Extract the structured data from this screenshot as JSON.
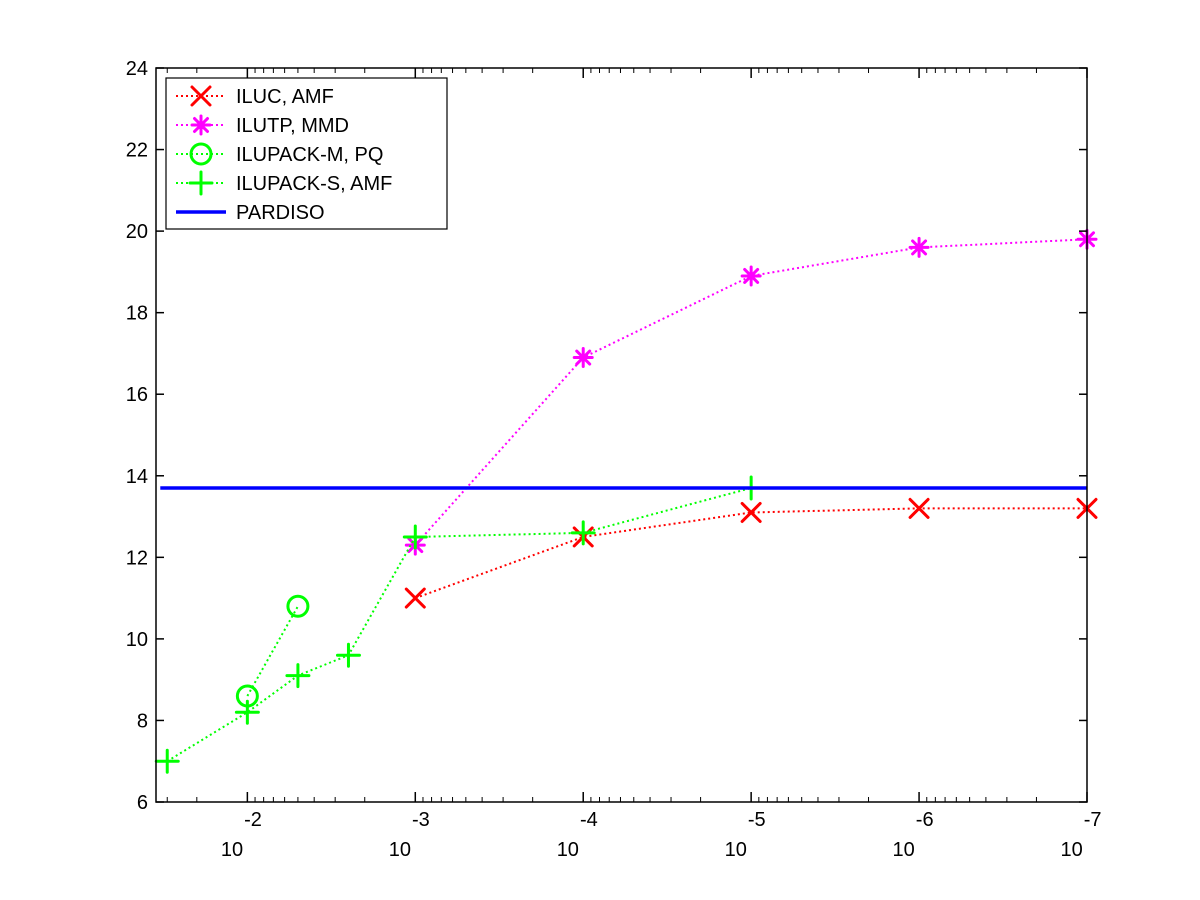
{
  "chart_data": {
    "type": "line",
    "title": "",
    "xlabel": "",
    "ylabel": "",
    "xscale": "log",
    "x_reversed": true,
    "xlim": [
      0.035,
      1e-07
    ],
    "ylim": [
      6,
      24
    ],
    "yticks": [
      6,
      8,
      10,
      12,
      14,
      16,
      18,
      20,
      22,
      24
    ],
    "xticks": [
      {
        "value": 0.01,
        "base": "10",
        "exponent": "-2"
      },
      {
        "value": 0.001,
        "base": "10",
        "exponent": "-3"
      },
      {
        "value": 0.0001,
        "base": "10",
        "exponent": "-4"
      },
      {
        "value": 1e-05,
        "base": "10",
        "exponent": "-5"
      },
      {
        "value": 1e-06,
        "base": "10",
        "exponent": "-6"
      },
      {
        "value": 1e-07,
        "base": "10",
        "exponent": "-7"
      }
    ],
    "grid": false,
    "legend_position": "top-left",
    "series": [
      {
        "name": "ILUC, AMF",
        "color": "#ff0000",
        "marker": "x",
        "line_style": "dotted",
        "x": [
          0.001,
          0.0001,
          1e-05,
          1e-06,
          1e-07
        ],
        "y": [
          11.0,
          12.5,
          13.1,
          13.2,
          13.2
        ]
      },
      {
        "name": "ILUTP, MMD",
        "color": "#ff00ff",
        "marker": "asterisk",
        "line_style": "dotted",
        "x": [
          0.001,
          0.0001,
          1e-05,
          1e-06,
          1e-07
        ],
        "y": [
          12.3,
          16.9,
          18.9,
          19.6,
          19.8
        ]
      },
      {
        "name": "ILUPACK-M, PQ",
        "color": "#00ff00",
        "marker": "circle",
        "line_style": "dotted",
        "x": [
          0.01,
          0.005
        ],
        "y": [
          8.6,
          10.8
        ]
      },
      {
        "name": "ILUPACK-S, AMF",
        "color": "#00ff00",
        "marker": "plus",
        "line_style": "dotted",
        "x": [
          0.03,
          0.01,
          0.005,
          0.0025,
          0.001,
          0.0001,
          1e-05
        ],
        "y": [
          7.0,
          8.2,
          9.1,
          9.6,
          12.5,
          12.6,
          13.7
        ]
      },
      {
        "name": "PARDISO",
        "color": "#0000ff",
        "marker": "none",
        "line_style": "solid",
        "x": [
          0.033,
          1e-07
        ],
        "y": [
          13.7,
          13.7
        ]
      }
    ]
  }
}
